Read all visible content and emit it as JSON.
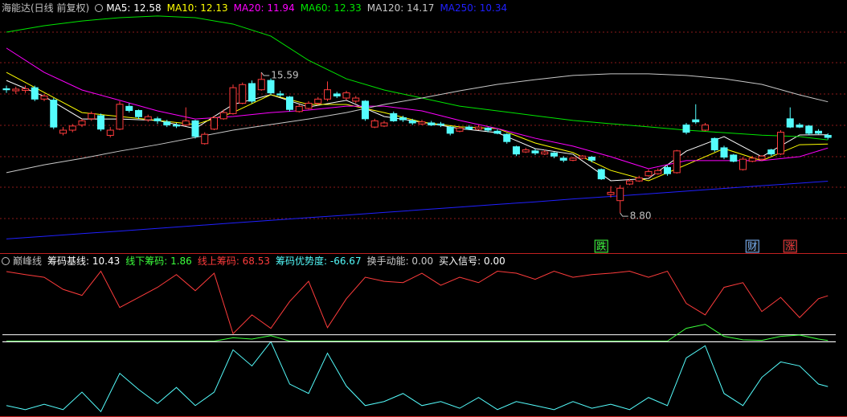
{
  "chart_data": [
    {
      "type": "candlestick",
      "title": "海能达(日线 前复权)",
      "open": [
        14.8,
        14.7,
        14.72,
        14.85,
        14.3,
        14.25,
        12.65,
        12.8,
        13.05,
        13.35,
        13.5,
        12.55,
        12.85,
        13.95,
        13.75,
        13.3,
        13.35,
        13.2,
        13.05,
        13.05,
        13.25,
        12.15,
        12.85,
        13.35,
        13.6,
        14.1,
        15.05,
        14.75,
        15.2,
        14.55,
        14.4,
        13.7,
        13.85,
        14.1,
        14.3,
        14.55,
        14.35,
        14.2,
        14.2,
        12.95,
        13.0,
        13.6,
        13.4,
        13.25,
        13.1,
        13.15,
        13.1,
        12.95,
        12.75,
        12.95,
        12.85,
        12.9,
        12.75,
        12.6,
        12.0,
        11.75,
        11.8,
        11.65,
        11.7,
        11.45,
        11.35,
        11.45,
        11.5,
        10.9,
        9.7,
        9.4,
        10.2,
        10.35,
        10.6,
        10.7,
        11.0,
        10.75,
        13.05,
        13.3,
        12.8,
        12.4,
        11.95,
        11.6,
        10.9,
        11.3,
        11.4,
        11.85,
        11.65,
        13.35,
        13.05,
        13.0,
        12.75,
        12.55
      ],
      "high": [
        14.95,
        14.9,
        14.95,
        14.95,
        14.55,
        14.35,
        12.95,
        13.1,
        13.35,
        13.7,
        13.6,
        12.95,
        14.2,
        14.1,
        13.8,
        13.55,
        13.45,
        13.3,
        13.15,
        13.9,
        13.3,
        12.7,
        13.5,
        13.8,
        15.0,
        15.1,
        15.2,
        15.59,
        15.3,
        14.7,
        14.45,
        14.05,
        14.2,
        14.4,
        15.15,
        14.65,
        14.7,
        14.45,
        14.25,
        13.35,
        13.25,
        13.7,
        13.5,
        13.35,
        13.3,
        13.25,
        13.2,
        13.0,
        13.0,
        13.05,
        13.05,
        12.95,
        12.85,
        12.65,
        12.05,
        11.95,
        11.9,
        11.85,
        11.75,
        11.55,
        11.5,
        11.6,
        11.55,
        10.95,
        10.1,
        10.15,
        10.45,
        10.6,
        10.9,
        10.95,
        11.1,
        11.85,
        13.15,
        14.05,
        13.15,
        12.45,
        12.05,
        11.65,
        11.5,
        11.55,
        11.6,
        11.9,
        12.8,
        13.9,
        13.15,
        13.05,
        12.85,
        12.65
      ],
      "low": [
        14.6,
        14.55,
        14.6,
        14.2,
        14.2,
        12.85,
        12.55,
        12.7,
        12.95,
        13.25,
        12.75,
        12.45,
        12.8,
        13.65,
        13.35,
        13.2,
        13.1,
        12.95,
        12.9,
        13.0,
        12.4,
        12.1,
        12.8,
        13.3,
        13.55,
        14.05,
        14.1,
        14.7,
        14.5,
        14.4,
        13.7,
        13.65,
        13.8,
        14.0,
        14.2,
        14.35,
        14.25,
        14.1,
        13.25,
        12.9,
        12.95,
        13.2,
        13.2,
        13.05,
        13.05,
        13.0,
        12.95,
        12.55,
        12.7,
        12.8,
        12.8,
        12.7,
        12.6,
        12.15,
        11.55,
        11.7,
        11.6,
        11.6,
        11.45,
        11.25,
        11.3,
        11.4,
        11.25,
        10.4,
        9.55,
        8.8,
        10.15,
        10.3,
        10.55,
        10.65,
        10.6,
        10.7,
        12.6,
        13.1,
        12.75,
        11.75,
        11.4,
        11.25,
        10.85,
        11.25,
        11.35,
        11.55,
        11.6,
        12.9,
        12.9,
        12.55,
        12.6,
        12.35
      ],
      "close": [
        14.75,
        14.78,
        14.8,
        14.3,
        14.45,
        12.95,
        12.8,
        13.0,
        13.25,
        13.6,
        12.85,
        12.8,
        14.05,
        13.75,
        13.45,
        13.45,
        13.25,
        13.05,
        13.0,
        13.25,
        12.5,
        12.6,
        13.4,
        13.65,
        14.85,
        15.0,
        14.2,
        15.25,
        14.6,
        14.5,
        13.8,
        13.95,
        14.1,
        14.3,
        14.75,
        14.45,
        14.6,
        14.35,
        13.35,
        13.25,
        13.15,
        13.25,
        13.3,
        13.15,
        13.2,
        13.05,
        13.05,
        12.65,
        12.9,
        12.85,
        12.95,
        12.8,
        12.65,
        12.25,
        11.65,
        11.85,
        11.7,
        11.75,
        11.55,
        11.35,
        11.45,
        11.55,
        11.35,
        10.45,
        9.8,
        10.0,
        10.35,
        10.5,
        10.8,
        10.85,
        10.7,
        11.8,
        12.7,
        13.2,
        13.05,
        11.85,
        11.5,
        11.3,
        11.4,
        11.45,
        11.55,
        11.65,
        12.7,
        12.95,
        12.95,
        12.65,
        12.65,
        12.45
      ],
      "up_color": "#ff3c3c",
      "down_color": "#54fcfc",
      "ylim": [
        7.45,
        18.5
      ],
      "line_x": [
        0,
        4,
        8,
        12,
        16,
        20,
        24,
        28,
        32,
        36,
        40,
        44,
        48,
        52,
        56,
        60,
        64,
        68,
        72,
        76,
        80,
        84,
        87
      ],
      "series": [
        {
          "name": "MA5: 12.58",
          "color": "#ffffff",
          "values": [
            15.2,
            14.43,
            13.34,
            13.34,
            13.27,
            12.88,
            14.04,
            14.51,
            13.92,
            14.24,
            13.46,
            13.19,
            12.88,
            12.68,
            11.91,
            11.64,
            10.36,
            10.47,
            11.79,
            12.49,
            11.52,
            12.57,
            12.58
          ]
        },
        {
          "name": "MA10: 12.13",
          "color": "#ffff00",
          "values": [
            15.59,
            14.62,
            13.65,
            13.46,
            13.27,
            13.07,
            13.65,
            14.51,
            14.04,
            14.04,
            13.65,
            13.19,
            12.96,
            12.88,
            12.18,
            11.72,
            10.86,
            10.36,
            11.13,
            11.91,
            11.33,
            12.1,
            12.13
          ]
        },
        {
          "name": "MA20: 11.94",
          "color": "#ff00ff",
          "values": [
            16.76,
            15.59,
            14.74,
            14.24,
            13.73,
            13.34,
            13.46,
            13.65,
            13.77,
            13.96,
            13.96,
            13.73,
            13.27,
            12.88,
            12.41,
            12.03,
            11.52,
            10.94,
            11.33,
            11.33,
            11.33,
            11.52,
            11.94
          ]
        },
        {
          "name": "MA60: 12.33",
          "color": "#00e600",
          "values": [
            17.53,
            17.84,
            18.07,
            18.23,
            18.31,
            18.23,
            17.92,
            17.34,
            16.17,
            15.28,
            14.74,
            14.35,
            13.96,
            13.73,
            13.5,
            13.27,
            13.11,
            12.96,
            12.8,
            12.68,
            12.56,
            12.49,
            12.33
          ]
        },
        {
          "name": "MA120: 14.17",
          "color": "#c8c8c8",
          "values": [
            10.75,
            11.13,
            11.44,
            11.79,
            12.1,
            12.45,
            12.8,
            13.07,
            13.34,
            13.65,
            14.04,
            14.35,
            14.7,
            15.01,
            15.24,
            15.44,
            15.52,
            15.52,
            15.44,
            15.28,
            15.01,
            14.5,
            14.17
          ]
        },
        {
          "name": "MA250: 10.34",
          "color": "#2020ff",
          "values": [
            7.55,
            7.68,
            7.81,
            7.93,
            8.06,
            8.19,
            8.32,
            8.45,
            8.58,
            8.7,
            8.83,
            8.96,
            9.09,
            9.22,
            9.34,
            9.48,
            9.6,
            9.73,
            9.86,
            9.99,
            10.12,
            10.24,
            10.34
          ]
        }
      ],
      "annotations": [
        {
          "x": 27,
          "value": 15.59
        },
        {
          "x": 65,
          "value": 8.8,
          "label": "8.80"
        }
      ],
      "events": [
        {
          "x": 63,
          "label": "跌",
          "color": "#3cff3c"
        },
        {
          "x": 79,
          "label": "财",
          "color": "#7fb8ff"
        },
        {
          "x": 83,
          "label": "涨",
          "color": "#ff3c3c"
        }
      ]
    },
    {
      "type": "line",
      "title": "巅峰线",
      "ylim": [
        -112,
        120
      ],
      "x": [
        0,
        2,
        4,
        6,
        8,
        10,
        12,
        14,
        16,
        18,
        20,
        22,
        24,
        26,
        28,
        30,
        32,
        34,
        36,
        38,
        40,
        42,
        44,
        46,
        48,
        50,
        52,
        54,
        56,
        58,
        60,
        62,
        64,
        66,
        68,
        70,
        72,
        74,
        76,
        78,
        80,
        82,
        84,
        86,
        87
      ],
      "series": [
        {
          "name": "筹码基线: 10.43",
          "color": "#ffffff",
          "value": 10.43
        },
        {
          "name": "线下筹码: 1.86",
          "color": "#3cff3c",
          "values": [
            1,
            1,
            1,
            1,
            1,
            1,
            1,
            1,
            1,
            1,
            1,
            1,
            6,
            4,
            9,
            1,
            1,
            1,
            1,
            1,
            1,
            1,
            1,
            1,
            1,
            1,
            1,
            1,
            1,
            1,
            1,
            1,
            1,
            1,
            1,
            1,
            20,
            26,
            8,
            3,
            2,
            8,
            10,
            4,
            1.86
          ]
        },
        {
          "name": "线上筹码: 68.53",
          "color": "#ff3c3c",
          "values": [
            104.5,
            100,
            96,
            78,
            69,
            105,
            51,
            66,
            81,
            100,
            76,
            102,
            12,
            40,
            20,
            60,
            90,
            21,
            64,
            96,
            90,
            88,
            102,
            84,
            96,
            88,
            105,
            102,
            93,
            105,
            96,
            100,
            102,
            105,
            96,
            105,
            57,
            40,
            81,
            88,
            45,
            66,
            36,
            64,
            68.53
          ]
        },
        {
          "name": "筹码优势度: -66.67",
          "color": "#54fcfc",
          "values": [
            -95,
            -101,
            -93,
            -101,
            -75,
            -104,
            -47,
            -71,
            -92,
            -68,
            -95,
            -75,
            -12,
            -36,
            0,
            -63,
            -77,
            -17,
            -66,
            -95,
            -89,
            -77,
            -95,
            -89,
            -99,
            -83,
            -101,
            -89,
            -95,
            -101,
            -89,
            -99,
            -93,
            -101,
            -83,
            -95,
            -24,
            -6,
            -77,
            -95,
            -53,
            -30,
            -36,
            -63,
            -66.67
          ]
        },
        {
          "name": "换手动能: 0.00",
          "color": "#c8c8c8",
          "value": 0
        },
        {
          "name": "买入信号: 0.00",
          "color": "#ffffff",
          "value": 0
        }
      ]
    }
  ]
}
